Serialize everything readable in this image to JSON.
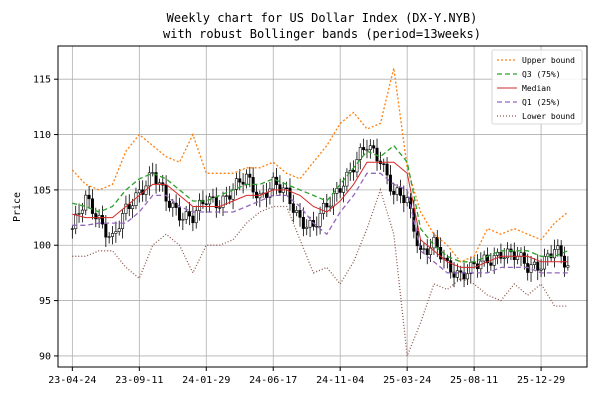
{
  "chart_data": {
    "type": "line",
    "title_line1": "Weekly chart for US Dollar Index (DX-Y.NYB)",
    "title_line2": "with robust Bollinger bands (period=13weeks)",
    "xlabel": "",
    "ylabel": "Price",
    "ylim": [
      89,
      118
    ],
    "yticks": [
      90,
      95,
      100,
      105,
      110,
      115
    ],
    "xticks": [
      "23-04-24",
      "23-09-11",
      "24-01-29",
      "24-06-17",
      "24-11-04",
      "25-03-24",
      "25-08-11",
      "25-12-29"
    ],
    "grid": true,
    "legend_position": "top-right",
    "x_dates": [
      "2023-04-24",
      "2023-05-22",
      "2023-06-19",
      "2023-07-17",
      "2023-08-14",
      "2023-09-11",
      "2023-10-09",
      "2023-11-06",
      "2023-12-04",
      "2024-01-01",
      "2024-01-29",
      "2024-02-26",
      "2024-03-25",
      "2024-04-22",
      "2024-05-20",
      "2024-06-17",
      "2024-07-15",
      "2024-08-12",
      "2024-09-09",
      "2024-10-07",
      "2024-11-04",
      "2024-12-02",
      "2024-12-30",
      "2025-01-27",
      "2025-02-24",
      "2025-03-24",
      "2025-04-21",
      "2025-05-19",
      "2025-06-16",
      "2025-07-14",
      "2025-08-11",
      "2025-09-08",
      "2025-10-06",
      "2025-11-03",
      "2025-12-01",
      "2025-12-29",
      "2026-01-26",
      "2026-02-23"
    ],
    "close": [
      101.5,
      104.0,
      102.5,
      100.5,
      103.0,
      105.0,
      106.5,
      104.0,
      103.0,
      102.5,
      104.0,
      104.0,
      105.0,
      106.0,
      104.5,
      105.5,
      104.5,
      102.5,
      101.5,
      103.5,
      105.5,
      107.0,
      109.0,
      108.0,
      104.5,
      104.0,
      99.5,
      100.0,
      98.0,
      97.5,
      98.0,
      98.5,
      99.5,
      99.0,
      98.0,
      98.5,
      99.5,
      98.0
    ],
    "series": [
      {
        "name": "Upper bound",
        "color": "#ff7f0e",
        "dash": "2,2",
        "values": [
          106.8,
          105.5,
          105.0,
          105.5,
          108.5,
          110.0,
          109.0,
          108.0,
          107.5,
          110.0,
          106.5,
          106.5,
          106.5,
          107.0,
          107.0,
          107.5,
          106.5,
          106.0,
          107.5,
          109.0,
          111.0,
          112.0,
          110.5,
          111.0,
          116.0,
          107.0,
          103.0,
          101.0,
          100.0,
          98.5,
          99.0,
          101.5,
          101.0,
          101.5,
          101.0,
          100.5,
          102.0,
          103.0
        ]
      },
      {
        "name": "Q3 (75%)",
        "color": "#2ca02c",
        "dash": "5,3",
        "values": [
          103.8,
          103.5,
          103.0,
          103.5,
          105.0,
          106.0,
          106.5,
          106.0,
          105.0,
          104.0,
          104.0,
          104.5,
          105.0,
          105.5,
          105.5,
          106.0,
          105.5,
          105.0,
          104.5,
          104.0,
          105.5,
          107.0,
          108.5,
          108.0,
          109.0,
          107.5,
          101.5,
          100.0,
          99.0,
          98.5,
          98.5,
          99.0,
          99.5,
          99.5,
          99.5,
          99.0,
          99.0,
          99.5
        ]
      },
      {
        "name": "Median",
        "color": "#d62728",
        "dash": "",
        "values": [
          102.8,
          102.5,
          102.5,
          102.5,
          103.5,
          104.5,
          105.5,
          105.5,
          104.5,
          103.5,
          103.5,
          103.5,
          104.0,
          104.5,
          104.5,
          105.0,
          105.0,
          104.5,
          103.5,
          103.0,
          104.0,
          105.5,
          107.5,
          107.5,
          107.5,
          106.5,
          100.5,
          99.5,
          98.5,
          98.0,
          98.0,
          98.5,
          99.0,
          99.0,
          99.0,
          98.5,
          98.5,
          98.5
        ]
      },
      {
        "name": "Q1 (25%)",
        "color": "#9467bd",
        "dash": "5,3",
        "values": [
          101.8,
          101.8,
          102.0,
          102.0,
          102.0,
          103.0,
          104.5,
          104.5,
          103.5,
          103.0,
          103.0,
          103.0,
          103.0,
          103.5,
          104.0,
          104.5,
          104.5,
          103.5,
          102.0,
          101.0,
          103.0,
          104.5,
          106.5,
          106.5,
          105.5,
          105.0,
          99.5,
          98.5,
          97.5,
          97.5,
          97.5,
          97.5,
          98.0,
          98.0,
          98.0,
          97.5,
          97.5,
          97.5
        ]
      },
      {
        "name": "Lower bound",
        "color": "#8c564b",
        "dash": "1,2",
        "values": [
          99.0,
          99.0,
          99.5,
          99.5,
          98.0,
          97.0,
          100.0,
          101.0,
          100.0,
          97.5,
          100.0,
          100.0,
          100.5,
          102.0,
          103.0,
          103.5,
          103.5,
          100.5,
          97.5,
          98.0,
          96.5,
          98.5,
          101.5,
          105.0,
          101.0,
          90.0,
          93.0,
          96.5,
          96.0,
          97.0,
          96.5,
          95.5,
          95.0,
          96.5,
          95.5,
          96.5,
          94.5,
          94.5
        ]
      }
    ]
  }
}
